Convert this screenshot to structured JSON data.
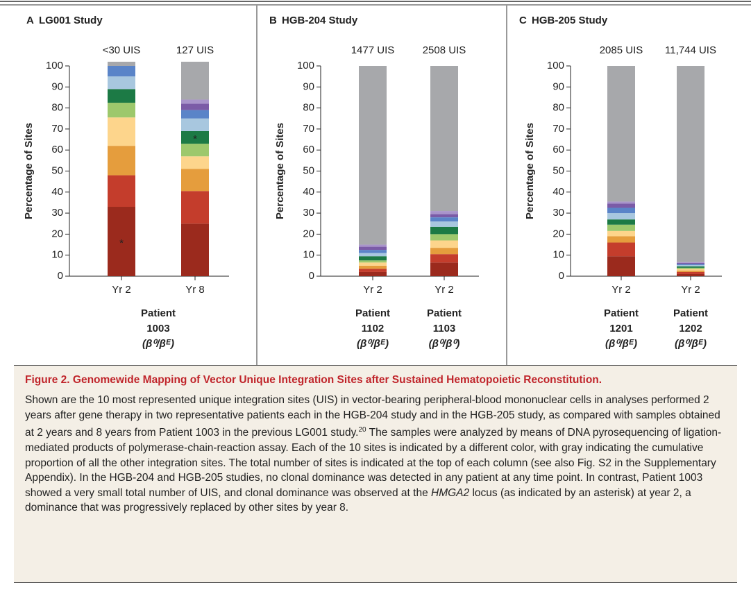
{
  "charts": [
    {
      "type": "stacked_bar",
      "panel_label": "A",
      "title": "LG001 Study",
      "ylabel": "Percentage of Sites",
      "categories": [
        "Yr 2",
        "Yr 8"
      ],
      "column_labels": [
        "<30 UIS",
        "127 UIS"
      ],
      "patients": [
        {
          "label": "Patient",
          "id": "1003",
          "genotype": "(β⁰/βᴱ)"
        }
      ],
      "ylim": [
        0,
        100
      ],
      "yticks": [
        0,
        10,
        20,
        30,
        40,
        50,
        60,
        70,
        80,
        90,
        100
      ],
      "series": [
        {
          "color": "#9b2a1d",
          "values": [
            33,
            25
          ]
        },
        {
          "color": "#c43d2c",
          "values": [
            15,
            15.5
          ]
        },
        {
          "color": "#e59d3d",
          "values": [
            14,
            10.5
          ]
        },
        {
          "color": "#fdd58c",
          "values": [
            13.5,
            6
          ]
        },
        {
          "color": "#9dc86c",
          "values": [
            7,
            6
          ]
        },
        {
          "color": "#1c7a45",
          "values": [
            6.5,
            6
          ]
        },
        {
          "color": "#a8c7df",
          "values": [
            6,
            6
          ]
        },
        {
          "color": "#5a84c8",
          "values": [
            5,
            4
          ]
        },
        {
          "color": "#7b5ba7",
          "values": [
            0,
            3
          ]
        },
        {
          "color": "#a994cb",
          "values": [
            0,
            2
          ]
        },
        {
          "color": "#a7a8ab",
          "values": [
            2,
            18
          ]
        }
      ],
      "annotations": [
        {
          "text": "*",
          "series": 0,
          "category": 0
        },
        {
          "text": "*",
          "series": 5,
          "category": 1
        }
      ]
    },
    {
      "type": "stacked_bar",
      "panel_label": "B",
      "title": "HGB-204 Study",
      "ylabel": "Percentage of Sites",
      "categories": [
        "Yr 2",
        "Yr 2"
      ],
      "column_labels": [
        "1477 UIS",
        "2508 UIS"
      ],
      "patients": [
        {
          "label": "Patient",
          "id": "1102",
          "genotype": "(β⁰/βᴱ)"
        },
        {
          "label": "Patient",
          "id": "1103",
          "genotype": "(β⁰/β⁰)"
        }
      ],
      "ylim": [
        0,
        100
      ],
      "yticks": [
        0,
        10,
        20,
        30,
        40,
        50,
        60,
        70,
        80,
        90,
        100
      ],
      "series": [
        {
          "color": "#9b2a1d",
          "values": [
            2,
            6.5
          ]
        },
        {
          "color": "#c43d2c",
          "values": [
            1.5,
            4
          ]
        },
        {
          "color": "#e59d3d",
          "values": [
            1.5,
            3
          ]
        },
        {
          "color": "#fdd58c",
          "values": [
            1.5,
            3.5
          ]
        },
        {
          "color": "#9dc86c",
          "values": [
            1,
            3
          ]
        },
        {
          "color": "#1c7a45",
          "values": [
            2,
            3.5
          ]
        },
        {
          "color": "#a8c7df",
          "values": [
            1.5,
            2.5
          ]
        },
        {
          "color": "#5a84c8",
          "values": [
            1.5,
            2
          ]
        },
        {
          "color": "#7b5ba7",
          "values": [
            1.5,
            1.5
          ]
        },
        {
          "color": "#a994cb",
          "values": [
            1,
            1.5
          ]
        },
        {
          "color": "#a7a8ab",
          "values": [
            85,
            69
          ]
        }
      ],
      "annotations": []
    },
    {
      "type": "stacked_bar",
      "panel_label": "C",
      "title": "HGB-205 Study",
      "ylabel": "Percentage of Sites",
      "categories": [
        "Yr 2",
        "Yr 2"
      ],
      "column_labels": [
        "2085 UIS",
        "11,744 UIS"
      ],
      "patients": [
        {
          "label": "Patient",
          "id": "1201",
          "genotype": "(β⁰/βᴱ)"
        },
        {
          "label": "Patient",
          "id": "1202",
          "genotype": "(β⁰/βᴱ)"
        }
      ],
      "ylim": [
        0,
        100
      ],
      "yticks": [
        0,
        10,
        20,
        30,
        40,
        50,
        60,
        70,
        80,
        90,
        100
      ],
      "series": [
        {
          "color": "#9b2a1d",
          "values": [
            9.5,
            1
          ]
        },
        {
          "color": "#c43d2c",
          "values": [
            6.5,
            1
          ]
        },
        {
          "color": "#e59d3d",
          "values": [
            3,
            0.7
          ]
        },
        {
          "color": "#fdd58c",
          "values": [
            2.5,
            0.7
          ]
        },
        {
          "color": "#9dc86c",
          "values": [
            3,
            0.6
          ]
        },
        {
          "color": "#1c7a45",
          "values": [
            2.5,
            0.7
          ]
        },
        {
          "color": "#a8c7df",
          "values": [
            3,
            0.6
          ]
        },
        {
          "color": "#5a84c8",
          "values": [
            2.5,
            0.5
          ]
        },
        {
          "color": "#7b5ba7",
          "values": [
            2,
            0.5
          ]
        },
        {
          "color": "#a994cb",
          "values": [
            1,
            0.4
          ]
        },
        {
          "color": "#a7a8ab",
          "values": [
            64.5,
            93.3
          ]
        }
      ],
      "annotations": []
    }
  ],
  "caption": {
    "title": "Figure 2. Genomewide Mapping of Vector Unique Integration Sites after Sustained Hematopoietic Reconstitution.",
    "body": [
      "Shown are the 10 most represented unique integration sites (UIS) in vector-bearing peripheral-blood mononuclear cells in analyses performed 2 years after gene therapy in two representative patients each in the HGB-204 study and in the HGB-205 study, as compared with samples obtained at 2 years and 8 years from Patient 1003 in the previous LG001 study.",
      "20",
      " The samples were analyzed by means of DNA pyrosequencing of ligation-mediated products of polymerase-chain-reaction assay. Each of the 10 sites is indicated by a different color, with gray indicating the cumulative proportion of all the other integration sites. The total number of sites is indicated at the top of each column (see also Fig. S2 in the Supplementary Appendix). In the HGB-204 and HGB-205 studies, no clonal dominance was detected in any patient at any time point. In contrast, Patient 1003 showed a very small total number of UIS, and clonal dominance was observed at the ",
      "HMGA2",
      " locus (as indicated by an asterisk) at year 2, a dominance that was progressively replaced by other sites by year 8."
    ]
  }
}
